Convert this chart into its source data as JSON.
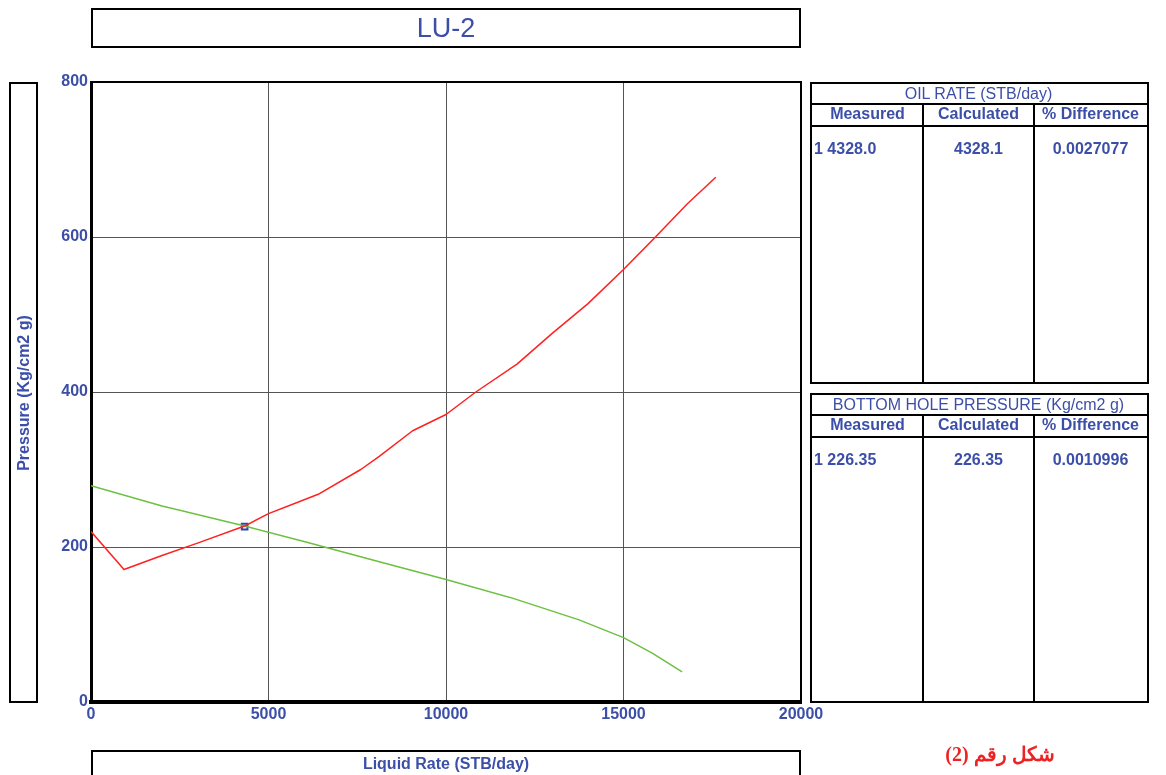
{
  "chart_data": [
    {
      "type": "line",
      "title": "LU-2",
      "xlabel": "Liquid Rate  (STB/day)",
      "ylabel": "Pressure  (Kg/cm2 g)",
      "xlim": [
        0,
        20000
      ],
      "xticks": [
        0,
        5000,
        10000,
        15000,
        20000
      ],
      "ylim": [
        0,
        800
      ],
      "yticks": [
        0,
        200,
        400,
        600,
        800
      ],
      "grid": true,
      "legend": false,
      "marker": "none",
      "line_style": "solid",
      "series": [
        {
          "color": "#ff2020",
          "x": [
            0,
            930,
            2000,
            3000,
            4328,
            5000,
            6400,
            7600,
            8120,
            9060,
            10000,
            10840,
            12000,
            13000,
            14000,
            15000,
            15900,
            16800,
            17600
          ],
          "values": [
            220,
            171,
            189,
            205,
            227,
            243,
            268,
            300,
            317,
            350,
            371,
            400,
            436,
            476,
            514,
            558,
            600,
            643,
            677
          ]
        },
        {
          "color": "#6cc040",
          "x": [
            0,
            2000,
            4328,
            6000,
            8120,
            10000,
            11870,
            13750,
            15000,
            15810,
            16650
          ],
          "values": [
            279,
            253,
            227,
            207,
            181,
            158,
            134,
            106,
            83,
            63,
            39
          ]
        },
        {
          "type": "scatter",
          "marker": "square",
          "color": "#3344aa",
          "x": [
            4328
          ],
          "values": [
            226.35
          ]
        }
      ],
      "annotations": [
        "شكل رقم (2)"
      ]
    },
    {
      "type": "other",
      "title": "OIL RATE   (STB/day)",
      "annotations": [
        "Measured",
        "Calculated",
        "% Difference",
        "1  4328.0",
        "4328.1",
        "0.0027077"
      ]
    },
    {
      "type": "other",
      "title": "BOTTOM HOLE PRESSURE    (Kg/cm2 g)",
      "annotations": [
        "Measured",
        "Calculated",
        "% Difference",
        "1  226.35",
        "226.35",
        "0.0010996"
      ]
    }
  ]
}
